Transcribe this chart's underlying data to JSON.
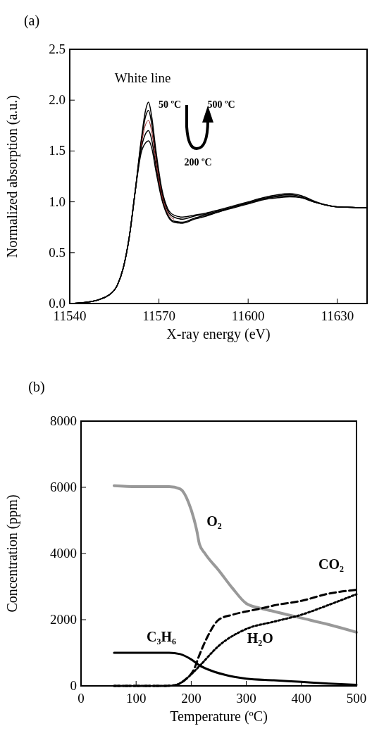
{
  "chart_data": [
    {
      "type": "line",
      "title": "(a)",
      "xlabel": "X-ray energy (eV)",
      "ylabel": "Normalized absorption (a.u.)",
      "xlim": [
        11540,
        11640
      ],
      "ylim": [
        0,
        2.5
      ],
      "xticks": [
        11540,
        11570,
        11600,
        11630
      ],
      "yticks": [
        {
          "value": 0,
          "label": "0.0"
        },
        {
          "value": 0.5,
          "label": "0.5"
        },
        {
          "value": 1,
          "label": "1.0"
        },
        {
          "value": 1.5,
          "label": "1.5"
        },
        {
          "value": 2,
          "label": "2.0"
        },
        {
          "value": 2.5,
          "label": "2.5"
        }
      ],
      "grid": false,
      "legend": false,
      "marker": "none",
      "x": [
        11540,
        11545,
        11550,
        11553,
        11556,
        11558,
        11560,
        11562,
        11564,
        11565.5,
        11566.5,
        11567.5,
        11569,
        11571,
        11573,
        11575,
        11578,
        11582,
        11586,
        11590,
        11595,
        11600,
        11605,
        11610,
        11614,
        11618,
        11622,
        11626,
        11630,
        11635,
        11640
      ],
      "series": [
        {
          "color": "#000000",
          "values": [
            0,
            0.01,
            0.04,
            0.08,
            0.18,
            0.35,
            0.65,
            1.1,
            1.6,
            1.9,
            1.98,
            1.85,
            1.5,
            1.12,
            0.93,
            0.87,
            0.85,
            0.87,
            0.89,
            0.92,
            0.96,
            1.0,
            1.04,
            1.07,
            1.08,
            1.06,
            1.01,
            0.97,
            0.95,
            0.945,
            0.94
          ]
        },
        {
          "color": "#000000",
          "values": [
            0,
            0.01,
            0.04,
            0.08,
            0.18,
            0.35,
            0.65,
            1.1,
            1.58,
            1.84,
            1.9,
            1.78,
            1.45,
            1.09,
            0.91,
            0.85,
            0.83,
            0.86,
            0.88,
            0.91,
            0.95,
            0.99,
            1.03,
            1.06,
            1.07,
            1.05,
            1.0,
            0.97,
            0.95,
            0.945,
            0.94
          ]
        },
        {
          "color": "#000000",
          "values": [
            0,
            0.01,
            0.04,
            0.08,
            0.18,
            0.35,
            0.65,
            1.1,
            1.52,
            1.67,
            1.7,
            1.62,
            1.35,
            1.04,
            0.87,
            0.81,
            0.8,
            0.84,
            0.87,
            0.9,
            0.95,
            0.99,
            1.03,
            1.05,
            1.06,
            1.04,
            1.0,
            0.97,
            0.95,
            0.945,
            0.94
          ]
        },
        {
          "color": "#000000",
          "values": [
            0,
            0.01,
            0.04,
            0.08,
            0.18,
            0.35,
            0.65,
            1.1,
            1.48,
            1.58,
            1.6,
            1.54,
            1.3,
            1.02,
            0.86,
            0.8,
            0.79,
            0.83,
            0.86,
            0.9,
            0.94,
            0.98,
            1.02,
            1.04,
            1.05,
            1.04,
            1.0,
            0.97,
            0.95,
            0.945,
            0.94
          ]
        },
        {
          "color": "#8b1a1a",
          "values": [
            null,
            null,
            null,
            null,
            null,
            null,
            null,
            null,
            1.55,
            1.76,
            1.8,
            1.7,
            1.4,
            1.06,
            0.89,
            0.83,
            null,
            null,
            null,
            null,
            null,
            null,
            null,
            null,
            null,
            null,
            null,
            null,
            null,
            null,
            null
          ]
        }
      ],
      "annotations": [
        {
          "text": "White line",
          "x": 11566.5,
          "y": 1.98
        },
        "50 ºC",
        "500 ºC",
        "200 ºC"
      ]
    },
    {
      "type": "line",
      "title": "(b)",
      "xlabel": "Temperature (ºC)",
      "ylabel": "Concentration (ppm)",
      "xlim": [
        0,
        500
      ],
      "ylim": [
        0,
        8000
      ],
      "xticks": [
        0,
        100,
        200,
        300,
        400,
        500
      ],
      "yticks": [
        0,
        2000,
        4000,
        6000,
        8000
      ],
      "grid": false,
      "legend": false,
      "marker": "none",
      "series": [
        {
          "name": "O₂",
          "color": "#999999",
          "line_style": "solid",
          "x": [
            60,
            100,
            160,
            180,
            195,
            205,
            210,
            215,
            225,
            250,
            275,
            300,
            325,
            350,
            400,
            450,
            500
          ],
          "values": [
            6050,
            6020,
            6020,
            5950,
            5550,
            5040,
            4700,
            4280,
            4000,
            3490,
            2950,
            2490,
            2350,
            2250,
            2050,
            1850,
            1620
          ]
        },
        {
          "name": "CO₂",
          "color": "#000000",
          "line_style": "dashed",
          "x": [
            60,
            150,
            170,
            190,
            205,
            215,
            230,
            250,
            275,
            300,
            330,
            350,
            400,
            450,
            500
          ],
          "values": [
            0,
            0,
            20,
            200,
            500,
            940,
            1500,
            2000,
            2150,
            2250,
            2350,
            2430,
            2570,
            2790,
            2900
          ]
        },
        {
          "name": "H₂O",
          "color": "#000000",
          "line_style": "dotted",
          "x": [
            60,
            150,
            170,
            190,
            200,
            215,
            250,
            300,
            350,
            400,
            450,
            500
          ],
          "values": [
            0,
            0,
            20,
            200,
            350,
            600,
            1210,
            1720,
            1940,
            2150,
            2450,
            2770
          ]
        },
        {
          "name": "C₃H₆",
          "color": "#000000",
          "line_style": "solid",
          "x": [
            60,
            160,
            180,
            200,
            215,
            230,
            260,
            300,
            350,
            400,
            450,
            500
          ],
          "values": [
            1000,
            1000,
            960,
            800,
            620,
            500,
            340,
            220,
            170,
            120,
            70,
            30
          ]
        }
      ]
    }
  ]
}
